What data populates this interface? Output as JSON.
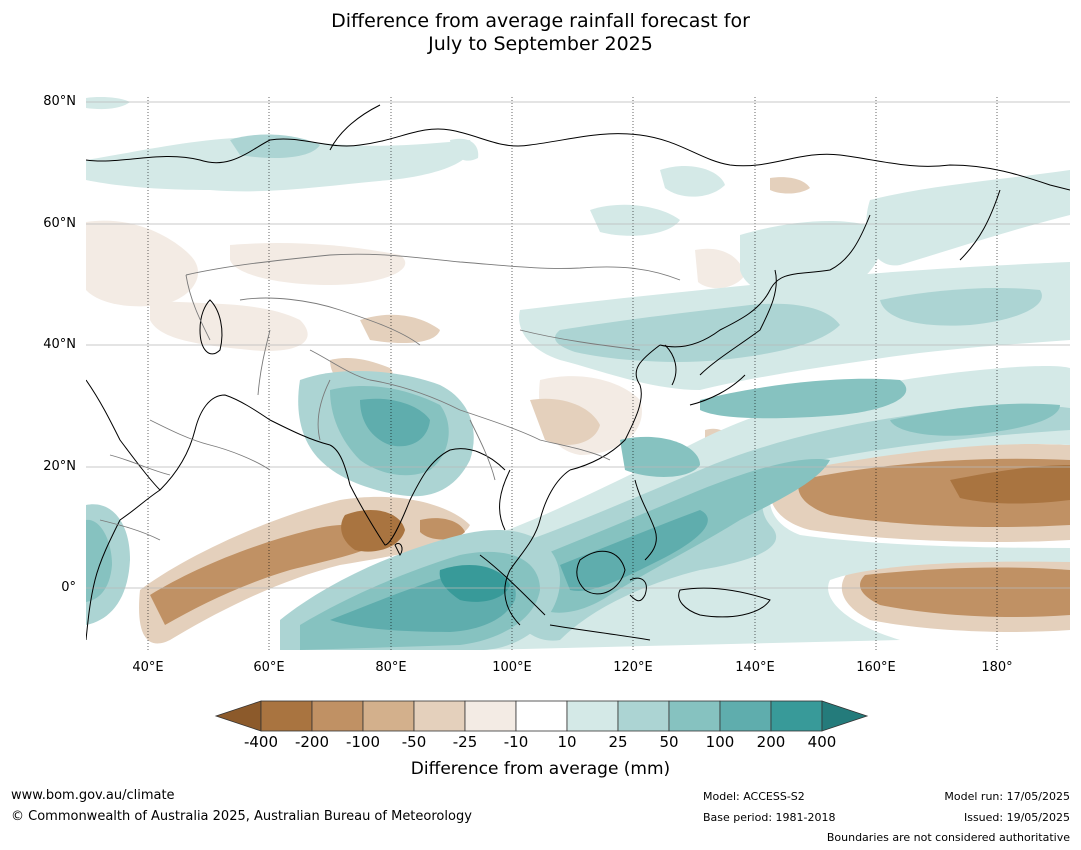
{
  "title_line1": "Difference from average rainfall forecast for",
  "title_line2": "July to September 2025",
  "lat_labels": [
    "80°N",
    "60°N",
    "40°N",
    "20°N",
    "0°"
  ],
  "lon_labels": [
    "40°E",
    "60°E",
    "80°E",
    "100°E",
    "120°E",
    "140°E",
    "160°E",
    "180°"
  ],
  "colorbar": {
    "title": "Difference from average (mm)",
    "tick_labels": [
      "-400",
      "-200",
      "-100",
      "-50",
      "-25",
      "-10",
      "10",
      "25",
      "50",
      "100",
      "200",
      "400"
    ],
    "colors": [
      "#8c5a2b",
      "#a97440",
      "#c09164",
      "#d3b08c",
      "#e4d0bc",
      "#f3ebe4",
      "#ffffff",
      "#d4e9e7",
      "#acd4d3",
      "#86c2c0",
      "#5fadad",
      "#389a99",
      "#247b7b"
    ]
  },
  "footer": {
    "website": "www.bom.gov.au/climate",
    "copyright": "© Commonwealth of Australia 2025, Australian Bureau of Meteorology",
    "model": "Model: ACCESS-S2",
    "base_period": "Base period: 1981-2018",
    "model_run": "Model run: 17/05/2025",
    "issued": "Issued: 19/05/2025",
    "disclaimer": "Boundaries are not considered authoritative"
  }
}
